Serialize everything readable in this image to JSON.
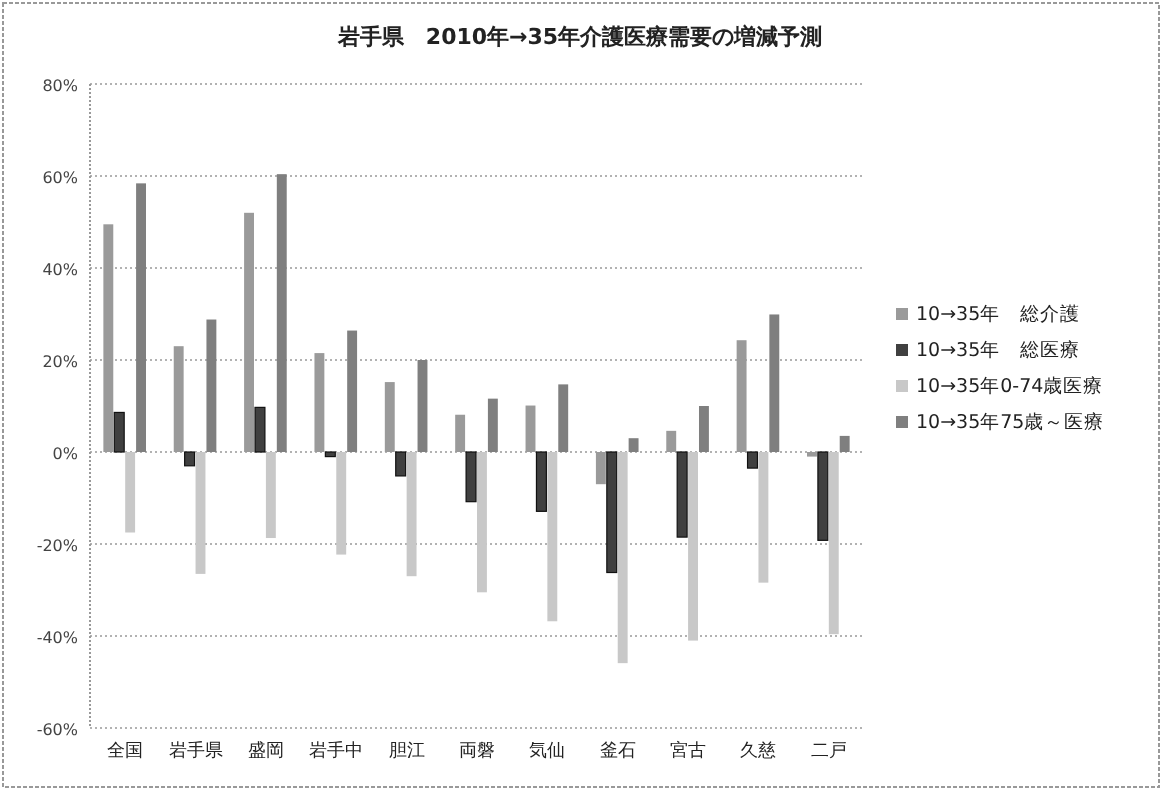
{
  "chart_data": {
    "type": "bar",
    "title": "岩手県　2010年→35年介護医療需要の増減予測",
    "categories": [
      "全国",
      "岩手県",
      "盛岡",
      "岩手中",
      "胆江",
      "両磐",
      "気仙",
      "釜石",
      "宮古",
      "久慈",
      "二戸"
    ],
    "series": [
      {
        "name": "10→35年　総介護",
        "color": "#9a9a9a",
        "values": [
          49.5,
          23,
          52,
          21.5,
          15.2,
          8.1,
          10.1,
          -7,
          4.6,
          24.3,
          -1
        ]
      },
      {
        "name": "10→35年　総医療",
        "color": "#404040",
        "values": [
          8.6,
          -3,
          9.7,
          -1,
          -5.2,
          -10.8,
          -12.9,
          -26.2,
          -18.5,
          -3.5,
          -19.2
        ]
      },
      {
        "name": "10→35年0-74歳医療",
        "color": "#c8c8c8",
        "values": [
          -17.5,
          -26.5,
          -18.7,
          -22.3,
          -27,
          -30.5,
          -36.8,
          -45.9,
          -41,
          -28.4,
          -39.6
        ]
      },
      {
        "name": "10→35年75歳～医療",
        "color": "#7f7f7f",
        "values": [
          58.4,
          28.8,
          60.4,
          26.4,
          20,
          11.6,
          14.7,
          3,
          10,
          29.9,
          3.5
        ]
      }
    ],
    "ylim": [
      -60,
      80
    ],
    "yticks": [
      {
        "value": -60,
        "label": "-60%"
      },
      {
        "value": -40,
        "label": "-40%"
      },
      {
        "value": -20,
        "label": "-20%"
      },
      {
        "value": 0,
        "label": "0%"
      },
      {
        "value": 20,
        "label": "20%"
      },
      {
        "value": 40,
        "label": "40%"
      },
      {
        "value": 60,
        "label": "60%"
      },
      {
        "value": 80,
        "label": "80%"
      }
    ],
    "grid": "y",
    "legend": "right"
  }
}
